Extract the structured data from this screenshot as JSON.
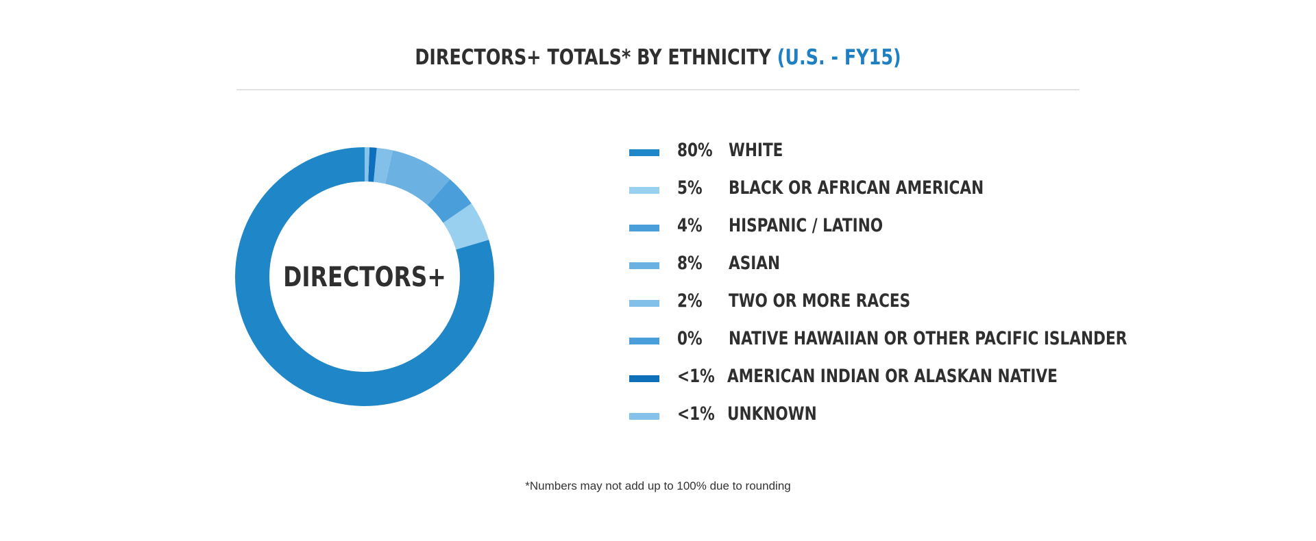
{
  "chart_data": {
    "type": "pie",
    "title": "DIRECTORS+ TOTALS* BY ETHNICITY",
    "subtitle": "(U.S. - FY15)",
    "center_label": "DIRECTORS+",
    "footnote": "*Numbers may not add up to 100% due to rounding",
    "legend_position": "right",
    "slices": [
      {
        "label": "80%",
        "category": "WHITE",
        "value": 80,
        "color": "#1f86c8"
      },
      {
        "label": "5%",
        "category": "BLACK OR AFRICAN AMERICAN",
        "value": 5,
        "color": "#99cfef"
      },
      {
        "label": "4%",
        "category": "HISPANIC / LATINO",
        "value": 4,
        "color": "#4a9fda"
      },
      {
        "label": "8%",
        "category": "ASIAN",
        "value": 8,
        "color": "#6bb2e2"
      },
      {
        "label": "2%",
        "category": "TWO OR MORE RACES",
        "value": 2,
        "color": "#82c0e9"
      },
      {
        "label": "0%",
        "category": "NATIVE HAWAIIAN OR OTHER PACIFIC ISLANDER",
        "value": 0,
        "color": "#4a9fda"
      },
      {
        "label": "<1%",
        "category": "AMERICAN INDIAN OR ALASKAN NATIVE",
        "value": 0.9,
        "color": "#0e6fba"
      },
      {
        "label": "<1%",
        "category": "UNKNOWN",
        "value": 0.6,
        "color": "#86c3ea"
      }
    ]
  }
}
